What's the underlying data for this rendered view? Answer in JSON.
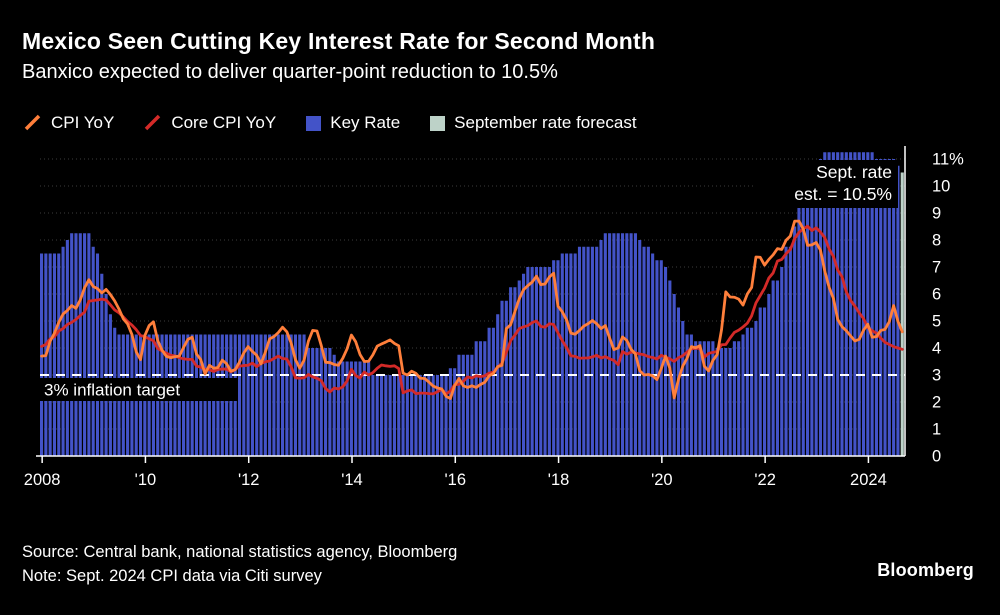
{
  "header": {
    "title": "Mexico Seen Cutting Key Interest Rate for Second Month",
    "subtitle": "Banxico expected to deliver quarter-point reduction to 10.5%"
  },
  "legend": [
    {
      "label": "CPI YoY",
      "type": "line",
      "color": "#ff7f3b"
    },
    {
      "label": "Core CPI YoY",
      "type": "line",
      "color": "#d42a28"
    },
    {
      "label": "Key Rate",
      "type": "bar",
      "color": "#4353c8"
    },
    {
      "label": "September rate forecast",
      "type": "bar",
      "color": "#bdd2c8"
    }
  ],
  "annotations": {
    "target_line": {
      "value": 3,
      "label": "3% inflation target"
    },
    "forecast_note": [
      "Sept. rate",
      "est. = 10.5%"
    ]
  },
  "axes": {
    "y_ticks": [
      "11%",
      "10",
      "9",
      "8",
      "7",
      "6",
      "5",
      "4",
      "3",
      "2",
      "1",
      "0"
    ],
    "x_ticks": [
      "2008",
      "'10",
      "'12",
      "'14",
      "'16",
      "'18",
      "'20",
      "'22",
      "2024"
    ]
  },
  "footer": {
    "source": "Source: Central bank, national statistics agency, Bloomberg",
    "note": "Note: Sept. 2024 CPI data via Citi survey",
    "brand": "Bloomberg"
  },
  "chart_data": {
    "type": "mixed",
    "x_start": "2008-01",
    "x_end": "2024-09",
    "frequency": "monthly",
    "ylim": [
      0,
      11.6
    ],
    "grid": "dotted horizontal at each 1%",
    "legend_position": "top",
    "series": [
      {
        "name": "Key Rate",
        "type": "bar",
        "color": "#4353c8",
        "values": [
          7.5,
          7.5,
          7.5,
          7.5,
          7.5,
          7.75,
          8,
          8.25,
          8.25,
          8.25,
          8.25,
          8.25,
          7.75,
          7.5,
          6.75,
          6,
          5.25,
          4.75,
          4.5,
          4.5,
          4.5,
          4.5,
          4.5,
          4.5,
          4.5,
          4.5,
          4.5,
          4.5,
          4.5,
          4.5,
          4.5,
          4.5,
          4.5,
          4.5,
          4.5,
          4.5,
          4.5,
          4.5,
          4.5,
          4.5,
          4.5,
          4.5,
          4.5,
          4.5,
          4.5,
          4.5,
          4.5,
          4.5,
          4.5,
          4.5,
          4.5,
          4.5,
          4.5,
          4.5,
          4.5,
          4.5,
          4.5,
          4.5,
          4.5,
          4.5,
          4.5,
          4.5,
          4,
          4,
          4,
          4,
          4,
          4,
          3.75,
          3.5,
          3.5,
          3.5,
          3.5,
          3.5,
          3.5,
          3.5,
          3.5,
          3,
          3,
          3,
          3,
          3,
          3,
          3,
          3,
          3,
          3,
          3,
          3,
          3,
          3,
          3,
          3,
          3,
          3,
          3.25,
          3.25,
          3.75,
          3.75,
          3.75,
          3.75,
          4.25,
          4.25,
          4.25,
          4.75,
          4.75,
          5.25,
          5.75,
          5.75,
          6.25,
          6.25,
          6.5,
          6.75,
          7,
          7,
          7,
          7,
          7,
          7,
          7.25,
          7.25,
          7.5,
          7.5,
          7.5,
          7.5,
          7.75,
          7.75,
          7.75,
          7.75,
          7.75,
          8,
          8.25,
          8.25,
          8.25,
          8.25,
          8.25,
          8.25,
          8.25,
          8.25,
          8,
          7.75,
          7.75,
          7.5,
          7.25,
          7.25,
          7,
          6.5,
          6,
          5.5,
          5,
          4.5,
          4.5,
          4.25,
          4.25,
          4.25,
          4.25,
          4.25,
          4,
          4,
          4,
          4,
          4.25,
          4.25,
          4.5,
          4.75,
          4.75,
          5,
          5.5,
          5.5,
          6,
          6.5,
          6.5,
          7,
          7.75,
          7.75,
          8.5,
          9.25,
          9.25,
          10,
          10.5,
          10.5,
          11,
          11.25,
          11.25,
          11.25,
          11.25,
          11.25,
          11.25,
          11.25,
          11.25,
          11.25,
          11.25,
          11.25,
          11.25,
          11,
          11,
          11,
          11,
          11,
          10.75
        ]
      },
      {
        "name": "September rate forecast",
        "type": "bar",
        "color": "#bdd2c8",
        "x": "2024-09",
        "value": 10.5
      },
      {
        "name": "CPI YoY",
        "type": "line",
        "color": "#ff7f3b",
        "values": [
          3.7,
          3.72,
          4.25,
          4.55,
          4.95,
          5.26,
          5.39,
          5.57,
          5.47,
          5.78,
          6.23,
          6.53,
          6.28,
          6.2,
          6.04,
          6.17,
          5.98,
          5.74,
          5.44,
          5.08,
          4.89,
          4.5,
          3.86,
          3.57,
          4.46,
          4.83,
          4.97,
          4.27,
          3.92,
          3.69,
          3.64,
          3.68,
          3.7,
          4.02,
          4.32,
          4.4,
          3.78,
          3.57,
          3.04,
          3.36,
          3.25,
          3.28,
          3.55,
          3.42,
          3.14,
          3.2,
          3.48,
          3.82,
          4.05,
          3.87,
          3.73,
          3.41,
          3.85,
          4.34,
          4.42,
          4.57,
          4.77,
          4.6,
          4.18,
          3.57,
          3.25,
          3.55,
          4.25,
          4.65,
          4.63,
          4.09,
          3.47,
          3.46,
          3.39,
          3.36,
          3.62,
          3.97,
          4.48,
          4.23,
          3.76,
          3.5,
          3.51,
          3.75,
          4.07,
          4.15,
          4.22,
          4.3,
          4.17,
          4.08,
          3.07,
          3,
          3.14,
          3.06,
          2.88,
          2.87,
          2.74,
          2.59,
          2.52,
          2.48,
          2.21,
          2.13,
          2.61,
          2.87,
          2.6,
          2.54,
          2.6,
          2.54,
          2.65,
          2.73,
          2.97,
          3.06,
          3.31,
          3.36,
          4.72,
          4.86,
          5.35,
          5.82,
          6.16,
          6.31,
          6.44,
          6.66,
          6.35,
          6.37,
          6.63,
          6.77,
          5.55,
          5.34,
          5.04,
          4.55,
          4.51,
          4.65,
          4.81,
          4.9,
          5.02,
          4.9,
          4.72,
          4.83,
          4.37,
          3.94,
          4,
          4.41,
          4.28,
          3.95,
          3.78,
          3.16,
          3,
          3.02,
          2.97,
          2.83,
          3.24,
          3.7,
          3.25,
          2.15,
          2.84,
          3.33,
          3.62,
          4.05,
          4.01,
          4.09,
          3.33,
          3.15,
          3.54,
          3.76,
          4.67,
          6.08,
          5.89,
          5.88,
          5.81,
          5.59,
          6,
          6.24,
          7.37,
          7.36,
          7.07,
          7.28,
          7.45,
          7.68,
          7.65,
          7.99,
          8.15,
          8.7,
          8.7,
          8.41,
          7.8,
          7.82,
          7.91,
          7.62,
          6.85,
          6.25,
          5.84,
          5.06,
          4.79,
          4.64,
          4.45,
          4.26,
          4.32,
          4.66,
          4.88,
          4.4,
          4.42,
          4.65,
          4.69,
          4.98,
          5.57,
          4.99,
          4.6
        ]
      },
      {
        "name": "Core CPI YoY",
        "type": "line",
        "color": "#d42a28",
        "values": [
          4.06,
          4.13,
          4.34,
          4.42,
          4.63,
          4.72,
          4.87,
          4.95,
          5.06,
          5.2,
          5.33,
          5.73,
          5.76,
          5.78,
          5.81,
          5.78,
          5.6,
          5.41,
          5.3,
          5.15,
          4.98,
          4.85,
          4.68,
          4.46,
          4.42,
          4.34,
          4.27,
          3.98,
          3.89,
          3.81,
          3.73,
          3.71,
          3.64,
          3.6,
          3.58,
          3.58,
          3.33,
          3.29,
          3.21,
          3.19,
          3.13,
          3.21,
          3.22,
          3.22,
          3.12,
          3.2,
          3.33,
          3.35,
          3.36,
          3.44,
          3.31,
          3.43,
          3.49,
          3.52,
          3.61,
          3.7,
          3.61,
          3.59,
          3.3,
          2.9,
          2.88,
          2.9,
          3.02,
          2.93,
          2.88,
          2.79,
          2.5,
          2.37,
          2.52,
          2.48,
          2.56,
          2.78,
          3.21,
          2.98,
          2.89,
          3.11,
          3,
          3.09,
          3.25,
          3.37,
          3.34,
          3.32,
          3.34,
          3.24,
          2.34,
          2.41,
          2.45,
          2.31,
          2.33,
          2.33,
          2.31,
          2.3,
          2.38,
          2.47,
          2.29,
          2.41,
          2.64,
          2.66,
          2.76,
          2.93,
          2.89,
          2.97,
          2.94,
          2.97,
          3.07,
          3.1,
          3.29,
          3.44,
          3.84,
          4.27,
          4.48,
          4.72,
          4.78,
          4.83,
          4.94,
          5,
          4.8,
          4.77,
          4.9,
          4.87,
          4.56,
          4.27,
          4.02,
          3.71,
          3.69,
          3.62,
          3.63,
          3.63,
          3.67,
          3.73,
          3.63,
          3.68,
          3.6,
          3.54,
          3.38,
          3.87,
          3.77,
          3.85,
          3.82,
          3.78,
          3.75,
          3.68,
          3.65,
          3.59,
          3.73,
          3.66,
          3.6,
          3.5,
          3.64,
          3.71,
          3.85,
          3.97,
          3.99,
          3.98,
          3.66,
          3.8,
          3.84,
          3.87,
          4.12,
          4.13,
          4.37,
          4.58,
          4.66,
          4.78,
          4.92,
          5.19,
          5.67,
          5.94,
          6.21,
          6.59,
          6.78,
          7.22,
          7.28,
          7.49,
          7.65,
          8.05,
          8.28,
          8.42,
          8.51,
          8.35,
          8.45,
          8.29,
          8.09,
          7.67,
          7.39,
          6.89,
          6.64,
          6.08,
          5.76,
          5.55,
          5.3,
          5.09,
          4.76,
          4.64,
          4.55,
          4.37,
          4.21,
          4.13,
          4.05,
          4,
          3.95
        ]
      }
    ]
  }
}
